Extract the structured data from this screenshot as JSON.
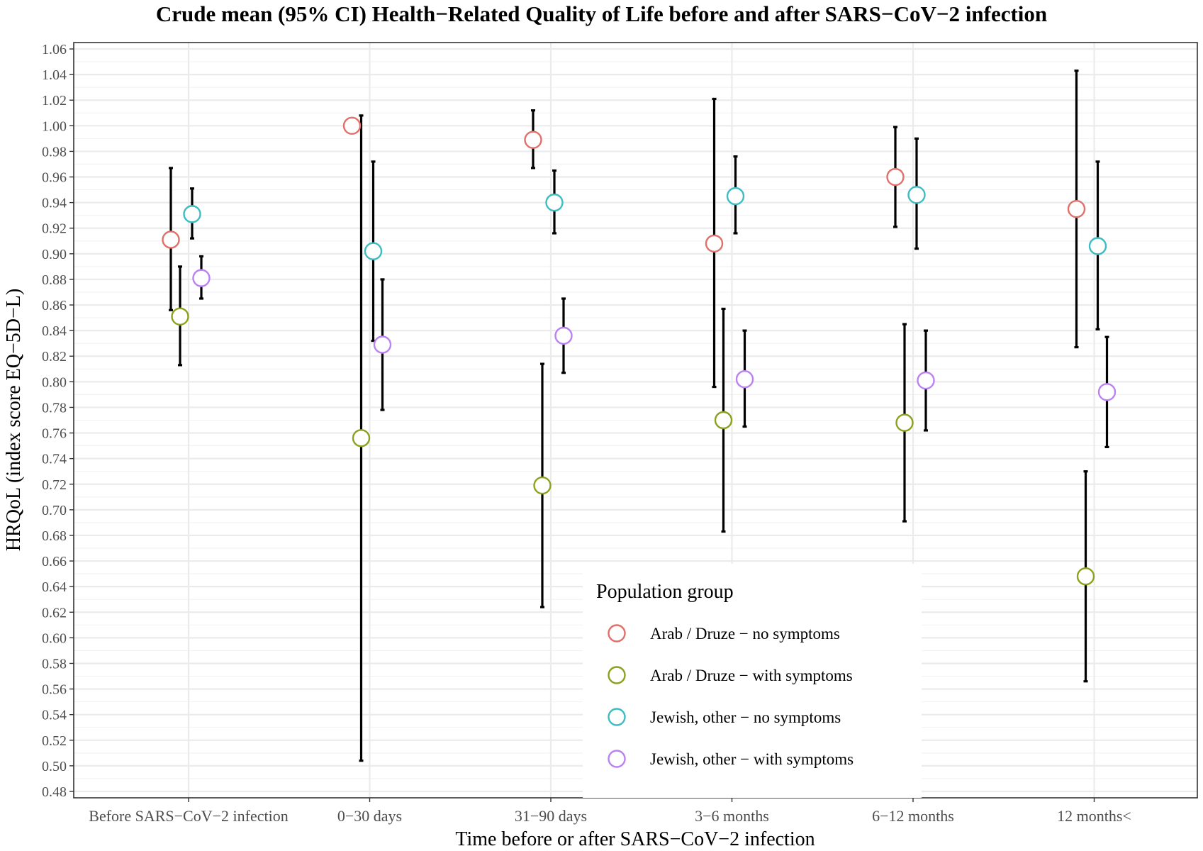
{
  "chart_data": {
    "type": "scatter",
    "title": "Crude mean (95% CI) Health−Related Quality of Life before and after SARS−CoV−2 infection",
    "xlabel": "Time before or after SARS−CoV−2 infection",
    "ylabel": "HRQoL (index score EQ−5D−L)",
    "categories": [
      "Before SARS−CoV−2 infection",
      "0−30 days",
      "31−90 days",
      "3−6 months",
      "6−12 months",
      "12 months<"
    ],
    "ylim": [
      0.475,
      1.065
    ],
    "yticks": [
      "0.48",
      "0.50",
      "0.52",
      "0.54",
      "0.56",
      "0.58",
      "0.60",
      "0.62",
      "0.64",
      "0.66",
      "0.68",
      "0.70",
      "0.72",
      "0.74",
      "0.76",
      "0.78",
      "0.80",
      "0.82",
      "0.84",
      "0.86",
      "0.88",
      "0.90",
      "0.92",
      "0.94",
      "0.96",
      "0.98",
      "1.00",
      "1.02",
      "1.04",
      "1.06"
    ],
    "grid": true,
    "legend": {
      "title": "Population group",
      "placement": "bottom-right"
    },
    "series": [
      {
        "name": "Arab / Druze − no symptoms",
        "color": "#E0706A",
        "mean": [
          0.911,
          1.0,
          0.989,
          0.908,
          0.96,
          0.935
        ],
        "lower": [
          0.856,
          null,
          0.967,
          0.796,
          0.921,
          0.827
        ],
        "upper": [
          0.967,
          null,
          1.012,
          1.021,
          0.999,
          1.043
        ]
      },
      {
        "name": "Arab / Druze − with symptoms",
        "color": "#8AA21E",
        "mean": [
          0.851,
          0.756,
          0.719,
          0.77,
          0.768,
          0.648
        ],
        "lower": [
          0.813,
          0.504,
          0.624,
          0.683,
          0.691,
          0.566
        ],
        "upper": [
          0.89,
          1.008,
          0.814,
          0.857,
          0.845,
          0.73
        ]
      },
      {
        "name": "Jewish, other − no symptoms",
        "color": "#3DBCC3",
        "mean": [
          0.931,
          0.902,
          0.94,
          0.945,
          0.946,
          0.906
        ],
        "lower": [
          0.912,
          0.832,
          0.916,
          0.916,
          0.904,
          0.841
        ],
        "upper": [
          0.951,
          0.972,
          0.965,
          0.976,
          0.99,
          0.972
        ]
      },
      {
        "name": "Jewish, other − with symptoms",
        "color": "#BB82F2",
        "mean": [
          0.881,
          0.829,
          0.836,
          0.802,
          0.801,
          0.792
        ],
        "lower": [
          0.865,
          0.778,
          0.807,
          0.765,
          0.762,
          0.749
        ],
        "upper": [
          0.898,
          0.88,
          0.865,
          0.84,
          0.84,
          0.835
        ]
      }
    ]
  }
}
